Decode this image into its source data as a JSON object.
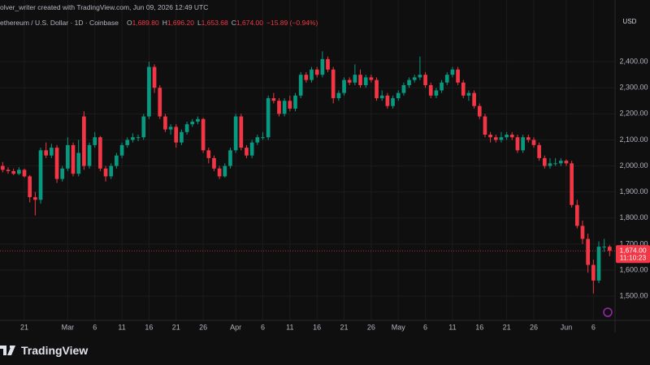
{
  "header": {
    "attribution": "olver_writer created with TradingView.com, Jun 09, 2026 12:49 UTC",
    "symbol": "ethereum / U.S. Dollar · 1D · Coinbase",
    "ohlc": [
      {
        "key": "O",
        "text": "1,689.80"
      },
      {
        "key": "H",
        "text": "1,696.20"
      },
      {
        "key": "L",
        "text": "1,653.68"
      },
      {
        "key": "C",
        "text": "1,674.00"
      }
    ],
    "change": "−15.89 (−0.94%)"
  },
  "footer": {
    "logo": "TradingView"
  },
  "chart_data": {
    "type": "candlestick",
    "currency": "USD",
    "up_color": "#089981",
    "down_color": "#f23645",
    "grid": true,
    "ylim": [
      1407,
      2637
    ],
    "yticks": [
      {
        "value": 1500,
        "label": "1,500.00"
      },
      {
        "value": 1600,
        "label": "1,600.00"
      },
      {
        "value": 1700,
        "label": "1,700.00"
      },
      {
        "value": 1800,
        "label": "1,800.00"
      },
      {
        "value": 1900,
        "label": "1,900.00"
      },
      {
        "value": 2000,
        "label": "2,000.00"
      },
      {
        "value": 2100,
        "label": "2,100.00"
      },
      {
        "value": 2200,
        "label": "2,200.00"
      },
      {
        "value": 2300,
        "label": "2,300.00"
      },
      {
        "value": 2400,
        "label": "2,400.00"
      }
    ],
    "xlim": [
      -0.5,
      113
    ],
    "xticks": [
      {
        "value": 4,
        "label": "21"
      },
      {
        "value": 12,
        "label": "Mar"
      },
      {
        "value": 17,
        "label": "6"
      },
      {
        "value": 22,
        "label": "11"
      },
      {
        "value": 27,
        "label": "16"
      },
      {
        "value": 32,
        "label": "21"
      },
      {
        "value": 37,
        "label": "26"
      },
      {
        "value": 43,
        "label": "Apr"
      },
      {
        "value": 48,
        "label": "6"
      },
      {
        "value": 53,
        "label": "11"
      },
      {
        "value": 58,
        "label": "16"
      },
      {
        "value": 63,
        "label": "21"
      },
      {
        "value": 68,
        "label": "26"
      },
      {
        "value": 73,
        "label": "May"
      },
      {
        "value": 78,
        "label": "6"
      },
      {
        "value": 83,
        "label": "11"
      },
      {
        "value": 88,
        "label": "16"
      },
      {
        "value": 93,
        "label": "21"
      },
      {
        "value": 98,
        "label": "26"
      },
      {
        "value": 104,
        "label": "Jun"
      },
      {
        "value": 109,
        "label": "6"
      }
    ],
    "last_price": {
      "value": 1674,
      "label": "1,674.00"
    },
    "countdown": "11:10:23",
    "ohlc": [
      [
        2000,
        2015,
        1975,
        1985
      ],
      [
        1985,
        1995,
        1970,
        1980
      ],
      [
        1980,
        1990,
        1965,
        1970
      ],
      [
        1970,
        1995,
        1965,
        1985
      ],
      [
        1985,
        1990,
        1955,
        1960
      ],
      [
        1960,
        1965,
        1860,
        1880
      ],
      [
        1880,
        1900,
        1810,
        1870
      ],
      [
        1870,
        2070,
        1855,
        2060
      ],
      [
        2060,
        2090,
        2030,
        2040
      ],
      [
        2040,
        2085,
        2030,
        2070
      ],
      [
        2070,
        2080,
        1935,
        1950
      ],
      [
        1950,
        2000,
        1940,
        1990
      ],
      [
        1990,
        2110,
        1980,
        2080
      ],
      [
        2080,
        2090,
        1960,
        1970
      ],
      [
        1970,
        2100,
        1960,
        2050
      ],
      [
        2190,
        2210,
        1985,
        2000
      ],
      [
        2000,
        2090,
        1990,
        2080
      ],
      [
        2080,
        2130,
        2070,
        2110
      ],
      [
        2110,
        2115,
        1980,
        1990
      ],
      [
        1990,
        2000,
        1940,
        1960
      ],
      [
        1960,
        2010,
        1950,
        2000
      ],
      [
        2000,
        2050,
        1990,
        2040
      ],
      [
        2040,
        2090,
        2030,
        2080
      ],
      [
        2080,
        2110,
        2070,
        2100
      ],
      [
        2100,
        2125,
        2090,
        2110
      ],
      [
        2110,
        2120,
        2095,
        2110
      ],
      [
        2110,
        2200,
        2100,
        2190
      ],
      [
        2190,
        2400,
        2180,
        2380
      ],
      [
        2380,
        2390,
        2280,
        2300
      ],
      [
        2300,
        2310,
        2180,
        2190
      ],
      [
        2190,
        2200,
        2130,
        2140
      ],
      [
        2140,
        2160,
        2120,
        2150
      ],
      [
        2150,
        2160,
        2070,
        2090
      ],
      [
        2090,
        2140,
        2080,
        2130
      ],
      [
        2130,
        2170,
        2120,
        2160
      ],
      [
        2160,
        2180,
        2150,
        2170
      ],
      [
        2170,
        2190,
        2160,
        2180
      ],
      [
        2180,
        2185,
        2050,
        2060
      ],
      [
        2060,
        2070,
        2010,
        2030
      ],
      [
        2030,
        2040,
        1980,
        1990
      ],
      [
        1990,
        2000,
        1950,
        1960
      ],
      [
        1960,
        2010,
        1955,
        2000
      ],
      [
        2000,
        2070,
        1990,
        2060
      ],
      [
        2060,
        2200,
        2050,
        2190
      ],
      [
        2190,
        2200,
        2060,
        2070
      ],
      [
        2070,
        2080,
        2030,
        2040
      ],
      [
        2040,
        2100,
        2030,
        2090
      ],
      [
        2090,
        2120,
        2080,
        2110
      ],
      [
        2110,
        2130,
        2100,
        2110
      ],
      [
        2110,
        2270,
        2100,
        2260
      ],
      [
        2260,
        2280,
        2240,
        2250
      ],
      [
        2250,
        2260,
        2190,
        2200
      ],
      [
        2200,
        2260,
        2190,
        2250
      ],
      [
        2250,
        2270,
        2210,
        2220
      ],
      [
        2220,
        2280,
        2210,
        2270
      ],
      [
        2270,
        2360,
        2260,
        2350
      ],
      [
        2350,
        2360,
        2320,
        2330
      ],
      [
        2330,
        2380,
        2320,
        2370
      ],
      [
        2370,
        2380,
        2340,
        2350
      ],
      [
        2350,
        2440,
        2340,
        2410
      ],
      [
        2410,
        2420,
        2360,
        2370
      ],
      [
        2370,
        2380,
        2240,
        2260
      ],
      [
        2260,
        2290,
        2250,
        2280
      ],
      [
        2280,
        2340,
        2270,
        2330
      ],
      [
        2330,
        2340,
        2310,
        2320
      ],
      [
        2320,
        2390,
        2310,
        2350
      ],
      [
        2350,
        2370,
        2300,
        2310
      ],
      [
        2310,
        2350,
        2300,
        2340
      ],
      [
        2340,
        2350,
        2320,
        2330
      ],
      [
        2330,
        2340,
        2250,
        2260
      ],
      [
        2260,
        2290,
        2250,
        2270
      ],
      [
        2270,
        2280,
        2220,
        2230
      ],
      [
        2230,
        2270,
        2220,
        2260
      ],
      [
        2260,
        2290,
        2250,
        2280
      ],
      [
        2280,
        2320,
        2270,
        2310
      ],
      [
        2310,
        2340,
        2300,
        2330
      ],
      [
        2330,
        2350,
        2320,
        2340
      ],
      [
        2340,
        2420,
        2330,
        2350
      ],
      [
        2350,
        2360,
        2300,
        2310
      ],
      [
        2310,
        2320,
        2260,
        2270
      ],
      [
        2270,
        2300,
        2260,
        2290
      ],
      [
        2290,
        2330,
        2280,
        2320
      ],
      [
        2320,
        2360,
        2310,
        2350
      ],
      [
        2350,
        2380,
        2340,
        2370
      ],
      [
        2370,
        2380,
        2310,
        2320
      ],
      [
        2320,
        2330,
        2260,
        2270
      ],
      [
        2270,
        2290,
        2250,
        2280
      ],
      [
        2280,
        2290,
        2220,
        2230
      ],
      [
        2230,
        2240,
        2180,
        2190
      ],
      [
        2190,
        2200,
        2110,
        2120
      ],
      [
        2120,
        2130,
        2090,
        2110
      ],
      [
        2110,
        2120,
        2090,
        2100
      ],
      [
        2100,
        2130,
        2090,
        2110
      ],
      [
        2110,
        2130,
        2100,
        2120
      ],
      [
        2120,
        2130,
        2100,
        2110
      ],
      [
        2110,
        2120,
        2050,
        2060
      ],
      [
        2060,
        2120,
        2050,
        2110
      ],
      [
        2110,
        2120,
        2090,
        2100
      ],
      [
        2100,
        2110,
        2070,
        2080
      ],
      [
        2080,
        2090,
        2020,
        2030
      ],
      [
        2030,
        2040,
        1990,
        2000
      ],
      [
        2000,
        2030,
        1990,
        2010
      ],
      [
        2010,
        2030,
        2000,
        2010
      ],
      [
        2010,
        2030,
        2000,
        2020
      ],
      [
        2020,
        2025,
        2000,
        2010
      ],
      [
        2010,
        2020,
        1840,
        1850
      ],
      [
        1850,
        1870,
        1760,
        1770
      ],
      [
        1770,
        1790,
        1700,
        1720
      ],
      [
        1720,
        1740,
        1590,
        1620
      ],
      [
        1620,
        1640,
        1510,
        1560
      ],
      [
        1560,
        1710,
        1550,
        1690
      ],
      [
        1690,
        1720,
        1670,
        1690
      ],
      [
        1689.8,
        1696.2,
        1653.68,
        1674
      ]
    ]
  }
}
